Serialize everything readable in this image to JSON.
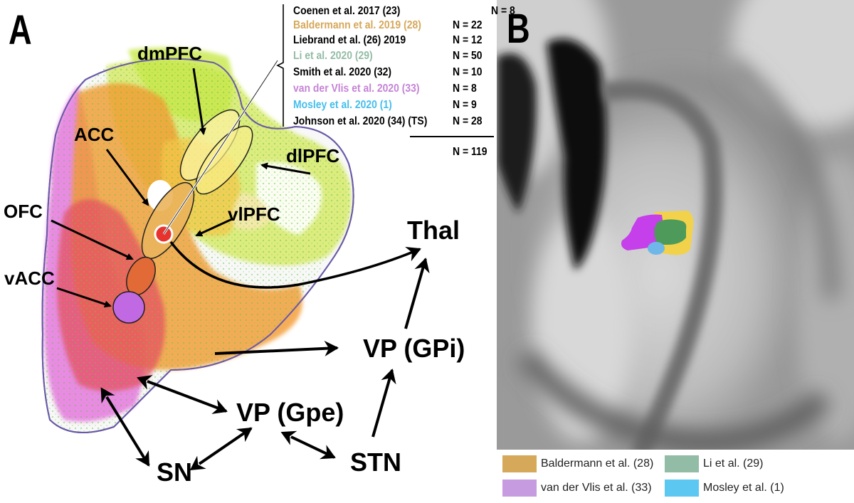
{
  "panels": {
    "a": "A",
    "b": "B"
  },
  "colors": {
    "baldermann": "#D6A85A",
    "li": "#93BCA6",
    "vandervlis": "#C79BE0",
    "mosley": "#5CC8F2",
    "li_blob": "#4E9A5A",
    "vandervlis_blob": "#C53FEA",
    "mosley_blob": "#6FB7E8",
    "baldermann_blob": "#F2D24A"
  },
  "studies": [
    {
      "name": "Coenen et al. 2017 (23)",
      "n": "N = 8",
      "color": "#000000"
    },
    {
      "name": "Baldermann et al. 2019 (28)",
      "n": "N = 22",
      "color": "#D6A85A"
    },
    {
      "name": "Liebrand et al. (26) 2019",
      "n": "N = 12",
      "color": "#000000"
    },
    {
      "name": "Li et al. 2020 (29)",
      "n": "N = 50",
      "color": "#93BCA6"
    },
    {
      "name": "Smith et al. 2020 (32)",
      "n": "N = 10",
      "color": "#000000"
    },
    {
      "name": "van der Vlis et al. 2020 (33)",
      "n": "N = 8",
      "color": "#C583D6"
    },
    {
      "name": "Mosley et al. 2020 (1)",
      "n": "N = 9",
      "color": "#46BEEB"
    },
    {
      "name": "Johnson et al. 2020 (34) (TS)",
      "n": "N = 28",
      "color": "#000000"
    }
  ],
  "total": "N = 119",
  "regions": {
    "dmpfc": "dmPFC",
    "acc": "ACC",
    "dlpfc": "dlPFC",
    "vlpfc": "vlPFC",
    "ofc": "OFC",
    "vacc": "vACC",
    "thal": "Thal",
    "vp_gpi": "VP (GPi)",
    "vp_gpe": "VP (Gpe)",
    "sn": "SN",
    "stn": "STN"
  },
  "legend": [
    {
      "label": "Baldermann et al. (28)",
      "color": "#D6A85A"
    },
    {
      "label": "Li et al. (29)",
      "color": "#93BCA6"
    },
    {
      "label": "van der Vlis et al. (33)",
      "color": "#C79BE0"
    },
    {
      "label": "Mosley et al. (1)",
      "color": "#5CC8F2"
    }
  ]
}
